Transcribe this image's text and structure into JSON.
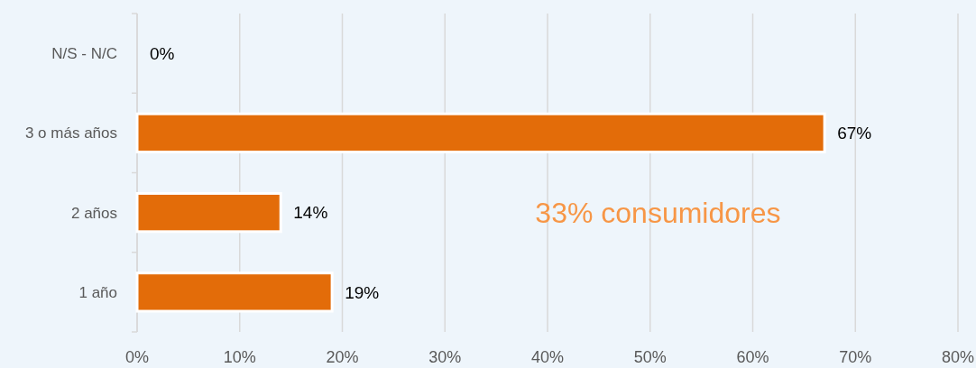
{
  "chart_data": {
    "type": "bar",
    "orientation": "horizontal",
    "categories": [
      "N/S - N/C",
      "3 o más años",
      "2 años",
      "1 año"
    ],
    "values": [
      0,
      67,
      14,
      19
    ],
    "color": "#e36c09",
    "value_labels": [
      "0%",
      "67%",
      "14%",
      "19%"
    ],
    "xlim": [
      0,
      80
    ],
    "xticks": [
      {
        "value": 0,
        "label": "0%"
      },
      {
        "value": 10,
        "label": "10%"
      },
      {
        "value": 20,
        "label": "20%"
      },
      {
        "value": 30,
        "label": "30%"
      },
      {
        "value": 40,
        "label": "40%"
      },
      {
        "value": 50,
        "label": "50%"
      },
      {
        "value": 60,
        "label": "60%"
      },
      {
        "value": 70,
        "label": "70%"
      },
      {
        "value": 80,
        "label": "80%"
      }
    ],
    "grid": "x",
    "annotations": [
      "33% consumidores"
    ]
  }
}
